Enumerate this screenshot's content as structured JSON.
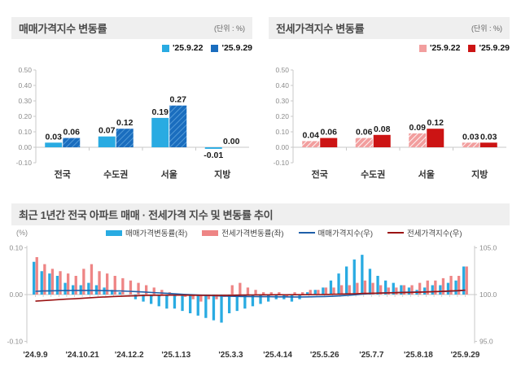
{
  "sale_panel": {
    "title": "매매가격지수 변동률",
    "unit": "(단위 : %)",
    "legend": [
      {
        "label": "'25.9.22"
      },
      {
        "label": "'25.9.29"
      }
    ]
  },
  "jeonse_panel": {
    "title": "전세가격지수 변동률",
    "unit": "(단위 : %)",
    "legend": [
      {
        "label": "'25.9.22"
      },
      {
        "label": "'25.9.29"
      }
    ]
  },
  "trend_panel": {
    "title": "최근 1년간 전국 아파트 매매 · 전세가격 지수 및 변동률 추이",
    "unit_left": "(%)",
    "legend": [
      {
        "label": "매매가격변동률(좌)"
      },
      {
        "label": "전세가격변동률(좌)"
      },
      {
        "label": "매매가격지수(우)"
      },
      {
        "label": "전세가격지수(우)"
      }
    ]
  },
  "colors": {
    "sale_s1": "#29abe2",
    "sale_s2": "#1a6dbe",
    "sale_s2_hatch": "#5aa0dc",
    "jeonse_s1": "#f29e9e",
    "jeonse_s1_hatch": "#ffffff",
    "jeonse_s2": "#cc1414",
    "trend_bar_sale": "#29abe2",
    "trend_bar_jeonse": "#ee8585",
    "trend_line_sale": "#1e5fa9",
    "trend_line_jeonse": "#9b1313",
    "header_bg": "#efefef",
    "axis": "#c9c9c9",
    "tick_text": "#8c8c8c",
    "value_text": "#1a1a1a",
    "category_text": "#333333"
  },
  "chart_data": [
    {
      "type": "bar",
      "title": "매매가격지수 변동률",
      "unit": "%",
      "categories": [
        "전국",
        "수도권",
        "서울",
        "지방"
      ],
      "series": [
        {
          "name": "'25.9.22",
          "values": [
            0.03,
            0.07,
            0.19,
            -0.01
          ]
        },
        {
          "name": "'25.9.29",
          "values": [
            0.06,
            0.12,
            0.27,
            0.0
          ]
        }
      ],
      "ylim": [
        -0.1,
        0.5
      ],
      "ytick": 0.1,
      "grid": false,
      "legend_position": "top-right"
    },
    {
      "type": "bar",
      "title": "전세가격지수 변동률",
      "unit": "%",
      "categories": [
        "전국",
        "수도권",
        "서울",
        "지방"
      ],
      "series": [
        {
          "name": "'25.9.22",
          "values": [
            0.04,
            0.06,
            0.09,
            0.03
          ]
        },
        {
          "name": "'25.9.29",
          "values": [
            0.06,
            0.08,
            0.12,
            0.03
          ]
        }
      ],
      "ylim": [
        -0.1,
        0.5
      ],
      "ytick": 0.1,
      "grid": false,
      "legend_position": "top-right"
    },
    {
      "type": "bar+line",
      "title": "최근 1년간 전국 아파트 매매 · 전세가격 지수 및 변동률 추이",
      "x_label_weeks": [
        0,
        6,
        12,
        18,
        25,
        31,
        37,
        43,
        49,
        55
      ],
      "x_labels": [
        "'24.9.9",
        "'24.10.21",
        "'24.12.2",
        "'25.1.13",
        "'25.3.3",
        "'25.4.14",
        "'25.5.26",
        "'25.7.7",
        "'25.8.18",
        "'25.9.29"
      ],
      "weeks": 56,
      "ylim_left": [
        -0.1,
        0.1
      ],
      "yticks_left": [
        0.1,
        0.0,
        -0.1
      ],
      "ylabel_left": "(%)",
      "ylim_right": [
        95.0,
        105.0
      ],
      "yticks_right": [
        105.0,
        100.0,
        95.0
      ],
      "grid": false,
      "legend_position": "top-center",
      "bar_series": [
        {
          "name": "매매가격변동률(좌)",
          "axis": "left",
          "values": [
            0.07,
            0.05,
            0.045,
            0.04,
            0.025,
            0.02,
            0.02,
            0.025,
            0.02,
            0.015,
            0.01,
            0.005,
            0.0,
            -0.01,
            -0.015,
            -0.02,
            -0.025,
            -0.03,
            -0.03,
            -0.035,
            -0.04,
            -0.045,
            -0.05,
            -0.055,
            -0.06,
            -0.04,
            -0.035,
            -0.03,
            -0.025,
            -0.02,
            -0.015,
            -0.01,
            -0.01,
            -0.015,
            -0.01,
            0.005,
            0.01,
            0.015,
            0.03,
            0.045,
            0.06,
            0.075,
            0.085,
            0.055,
            0.04,
            0.03,
            0.025,
            0.02,
            0.015,
            0.01,
            0.015,
            0.02,
            0.02,
            0.025,
            0.03,
            0.06
          ]
        },
        {
          "name": "전세가격변동률(좌)",
          "axis": "left",
          "values": [
            0.08,
            0.065,
            0.055,
            0.05,
            0.045,
            0.04,
            0.055,
            0.065,
            0.05,
            0.045,
            0.04,
            0.035,
            0.03,
            0.025,
            0.02,
            0.015,
            0.01,
            0.005,
            0.0,
            -0.005,
            -0.01,
            -0.015,
            -0.01,
            -0.01,
            -0.005,
            0.02,
            0.025,
            0.015,
            0.01,
            0.005,
            0.005,
            0.005,
            -0.005,
            0.005,
            0.005,
            0.01,
            0.01,
            0.015,
            0.015,
            0.02,
            0.02,
            0.025,
            0.03,
            0.025,
            0.02,
            0.015,
            0.015,
            0.02,
            0.02,
            0.025,
            0.03,
            0.03,
            0.035,
            0.04,
            0.04,
            0.06
          ]
        }
      ],
      "line_series": [
        {
          "name": "매매가격지수(우)",
          "axis": "right",
          "values": [
            100.35,
            100.38,
            100.4,
            100.42,
            100.43,
            100.44,
            100.44,
            100.44,
            100.43,
            100.42,
            100.4,
            100.38,
            100.35,
            100.31,
            100.27,
            100.22,
            100.17,
            100.12,
            100.07,
            100.02,
            99.98,
            99.94,
            99.9,
            99.87,
            99.84,
            99.82,
            99.8,
            99.79,
            99.78,
            99.77,
            99.77,
            99.76,
            99.76,
            99.75,
            99.75,
            99.76,
            99.77,
            99.79,
            99.82,
            99.86,
            99.91,
            99.98,
            100.06,
            100.12,
            100.16,
            100.19,
            100.22,
            100.24,
            100.26,
            100.27,
            100.29,
            100.31,
            100.33,
            100.36,
            100.39,
            100.45
          ]
        },
        {
          "name": "전세가격지수(우)",
          "axis": "right",
          "values": [
            99.3,
            99.36,
            99.41,
            99.46,
            99.51,
            99.55,
            99.6,
            99.66,
            99.71,
            99.75,
            99.79,
            99.82,
            99.85,
            99.88,
            99.9,
            99.92,
            99.93,
            99.94,
            99.94,
            99.94,
            99.93,
            99.92,
            99.91,
            99.9,
            99.9,
            99.92,
            99.94,
            99.95,
            99.96,
            99.97,
            99.97,
            99.98,
            99.97,
            99.98,
            99.98,
            99.99,
            100.0,
            100.01,
            100.03,
            100.05,
            100.07,
            100.09,
            100.12,
            100.14,
            100.16,
            100.17,
            100.19,
            100.21,
            100.23,
            100.25,
            100.28,
            100.31,
            100.34,
            100.38,
            100.42,
            100.48
          ]
        }
      ]
    }
  ]
}
